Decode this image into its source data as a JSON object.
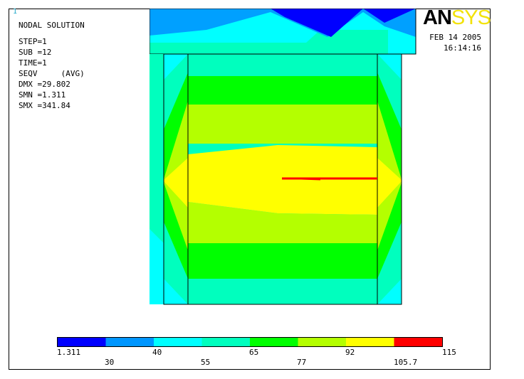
{
  "window": {
    "number": "1"
  },
  "info": {
    "title": "NODAL SOLUTION",
    "step": "STEP=1",
    "sub": "SUB =12",
    "time": "TIME=1",
    "seqv": "SEQV     (AVG)",
    "dmx": "DMX =29.802",
    "smn": "SMN =1.311",
    "smx": "SMX =341.84"
  },
  "logo": {
    "part1": "AN",
    "part2": "SYS"
  },
  "date": {
    "date": "FEB 14 2005",
    "time": "16:14:16"
  },
  "legend": {
    "colors": [
      "#0000ff",
      "#0096ff",
      "#00ffff",
      "#00ffbe",
      "#00ff00",
      "#b4ff00",
      "#ffff00",
      "#ff0000"
    ],
    "top_labels": [
      "1.311",
      "40",
      "65",
      "92",
      "115"
    ],
    "bottom_labels": [
      "30",
      "55",
      "77",
      "105.7"
    ]
  }
}
